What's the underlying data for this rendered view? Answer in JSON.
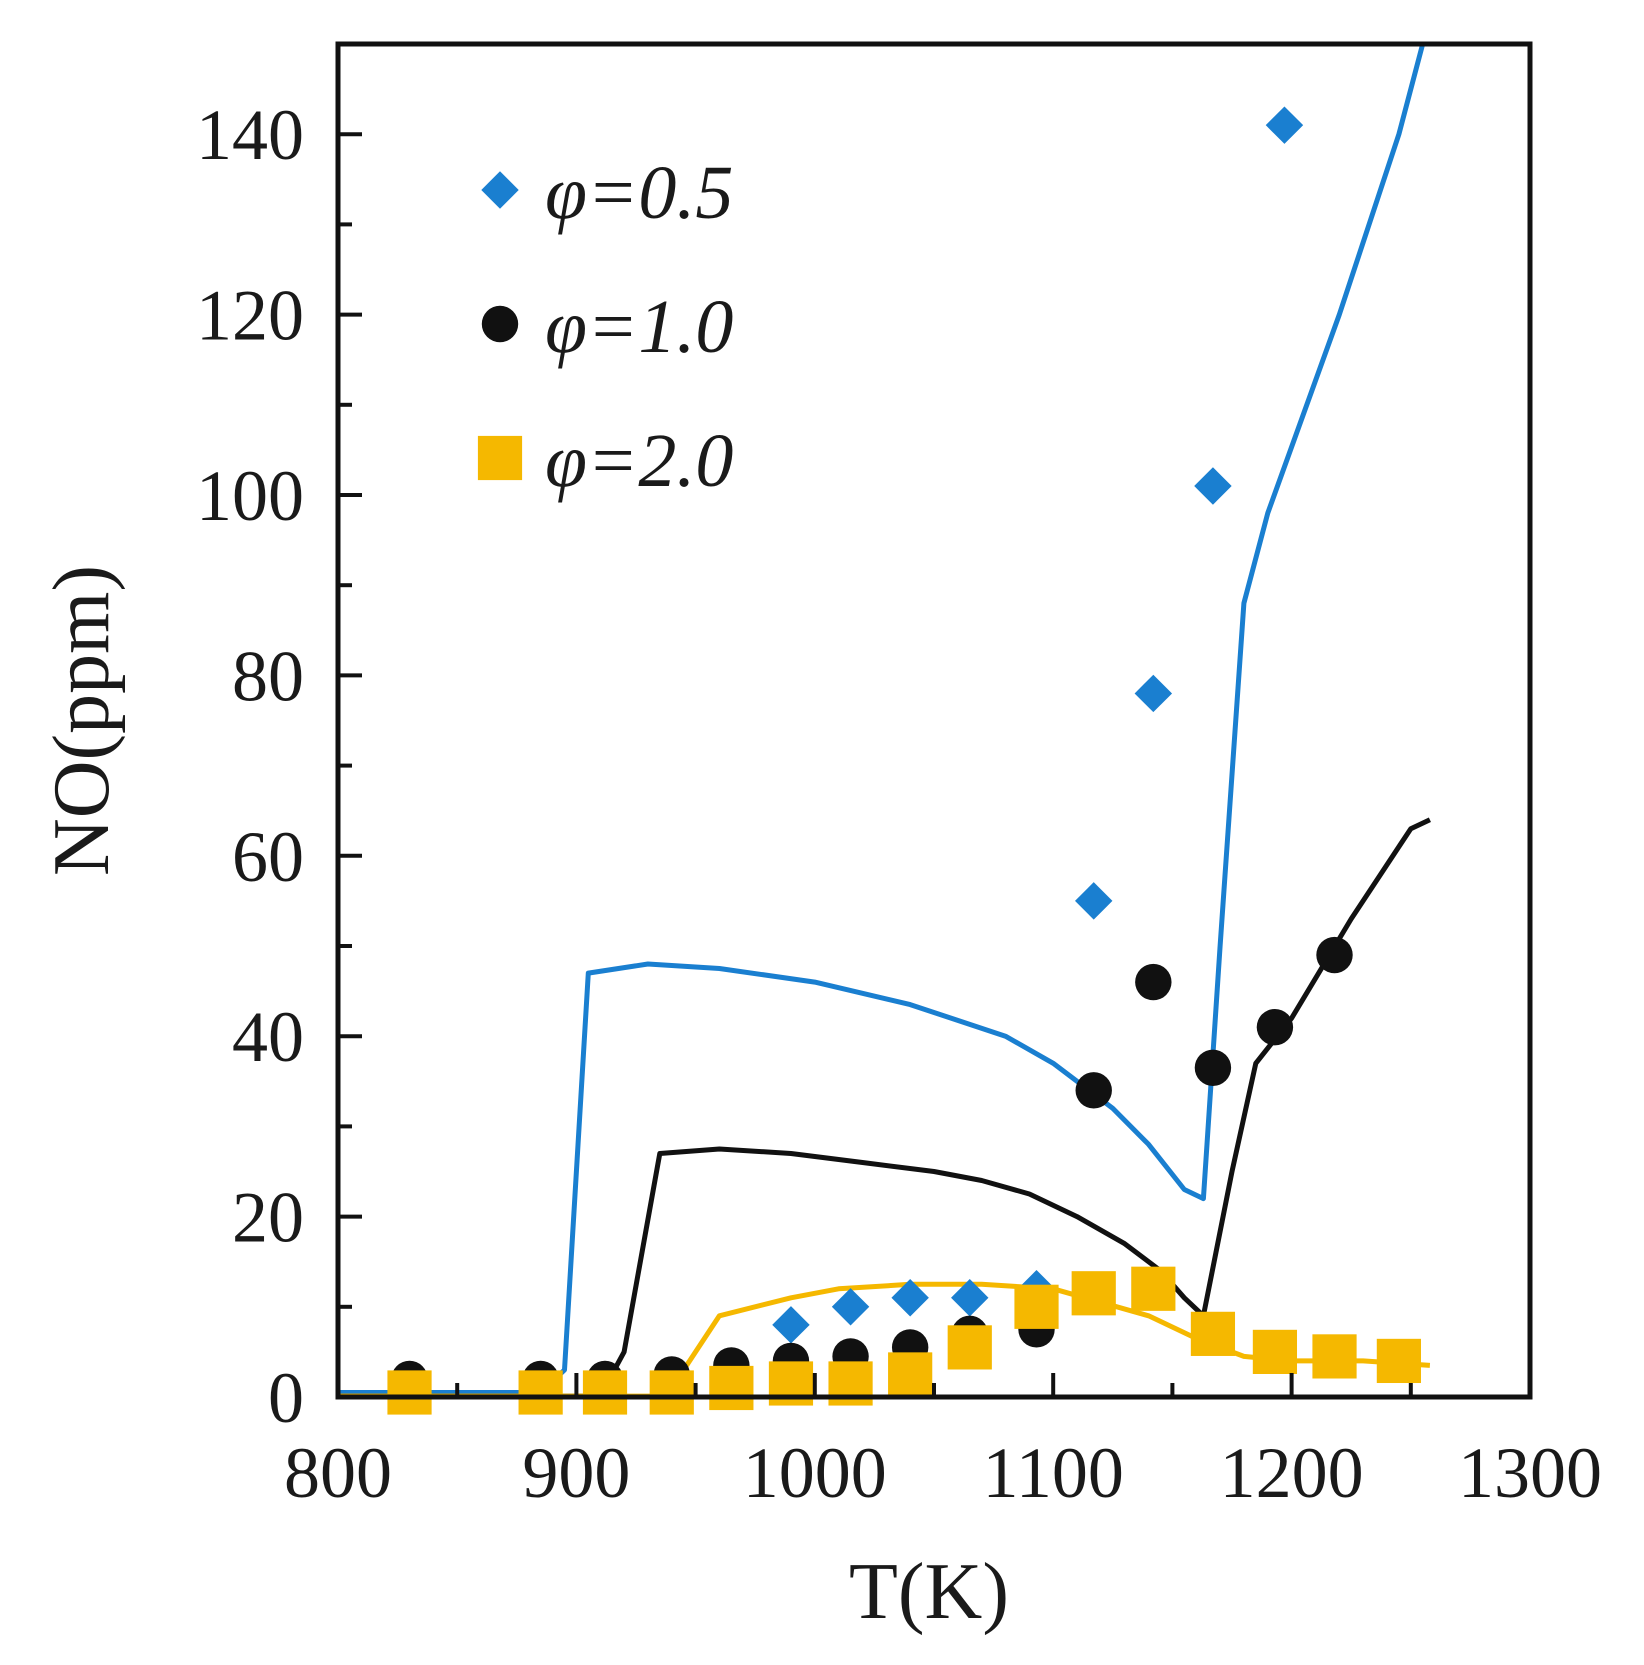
{
  "chart_data": {
    "type": "scatter",
    "title": "",
    "xlabel": "T(K)",
    "ylabel": "NO(ppm)",
    "xlim": [
      800,
      1300
    ],
    "ylim": [
      0,
      150
    ],
    "x_ticks": [
      800,
      900,
      1000,
      1100,
      1200,
      1300
    ],
    "y_ticks": [
      0,
      20,
      40,
      60,
      80,
      100,
      120,
      140
    ],
    "legend_position": "top-left",
    "grid": false,
    "series": [
      {
        "name": "φ=0.5",
        "color": "#1a7fd0",
        "marker": "diamond",
        "points": [
          [
            990,
            8
          ],
          [
            1015,
            10
          ],
          [
            1040,
            11
          ],
          [
            1065,
            11
          ],
          [
            1093,
            12
          ],
          [
            1117,
            55
          ],
          [
            1142,
            78
          ],
          [
            1167,
            101
          ],
          [
            1197,
            141
          ]
        ],
        "model": [
          [
            800,
            0.5
          ],
          [
            885,
            0.5
          ],
          [
            895,
            3
          ],
          [
            905,
            47
          ],
          [
            930,
            48
          ],
          [
            960,
            47.5
          ],
          [
            1000,
            46
          ],
          [
            1040,
            43.5
          ],
          [
            1080,
            40
          ],
          [
            1100,
            37
          ],
          [
            1125,
            32
          ],
          [
            1140,
            28
          ],
          [
            1155,
            23
          ],
          [
            1163,
            22
          ],
          [
            1170,
            50
          ],
          [
            1180,
            88
          ],
          [
            1190,
            98
          ],
          [
            1220,
            120
          ],
          [
            1245,
            140
          ],
          [
            1255,
            150
          ]
        ]
      },
      {
        "name": "φ=1.0",
        "color": "#111111",
        "marker": "circle",
        "points": [
          [
            830,
            2
          ],
          [
            885,
            2
          ],
          [
            912,
            2
          ],
          [
            940,
            2.5
          ],
          [
            965,
            3.5
          ],
          [
            990,
            4
          ],
          [
            1015,
            4.5
          ],
          [
            1040,
            5.5
          ],
          [
            1065,
            7
          ],
          [
            1093,
            7.5
          ],
          [
            1117,
            34
          ],
          [
            1142,
            46
          ],
          [
            1167,
            36.5
          ],
          [
            1193,
            41
          ],
          [
            1218,
            49
          ]
        ],
        "model": [
          [
            800,
            0.1
          ],
          [
            910,
            0.1
          ],
          [
            920,
            5
          ],
          [
            935,
            27
          ],
          [
            960,
            27.5
          ],
          [
            990,
            27
          ],
          [
            1020,
            26
          ],
          [
            1050,
            25
          ],
          [
            1070,
            24
          ],
          [
            1090,
            22.5
          ],
          [
            1110,
            20
          ],
          [
            1130,
            17
          ],
          [
            1145,
            14
          ],
          [
            1155,
            11
          ],
          [
            1163,
            9
          ],
          [
            1175,
            25
          ],
          [
            1185,
            37
          ],
          [
            1200,
            42
          ],
          [
            1225,
            53
          ],
          [
            1250,
            63
          ],
          [
            1258,
            64
          ]
        ]
      },
      {
        "name": "φ=2.0",
        "color": "#f5b800",
        "marker": "square",
        "points": [
          [
            830,
            0.5
          ],
          [
            885,
            0.5
          ],
          [
            912,
            0.5
          ],
          [
            940,
            0.5
          ],
          [
            965,
            1
          ],
          [
            990,
            1.5
          ],
          [
            1015,
            1.5
          ],
          [
            1040,
            2.5
          ],
          [
            1065,
            5.5
          ],
          [
            1093,
            10
          ],
          [
            1117,
            11.5
          ],
          [
            1142,
            12
          ],
          [
            1167,
            7
          ],
          [
            1193,
            5
          ],
          [
            1218,
            4.5
          ],
          [
            1245,
            4
          ]
        ],
        "model": [
          [
            800,
            0.1
          ],
          [
            940,
            0.1
          ],
          [
            945,
            3
          ],
          [
            960,
            9
          ],
          [
            990,
            11
          ],
          [
            1010,
            12
          ],
          [
            1040,
            12.5
          ],
          [
            1070,
            12.5
          ],
          [
            1100,
            12
          ],
          [
            1120,
            10.5
          ],
          [
            1140,
            9
          ],
          [
            1160,
            6.5
          ],
          [
            1180,
            4.5
          ],
          [
            1200,
            4
          ],
          [
            1230,
            4
          ],
          [
            1258,
            3.5
          ]
        ]
      }
    ]
  }
}
